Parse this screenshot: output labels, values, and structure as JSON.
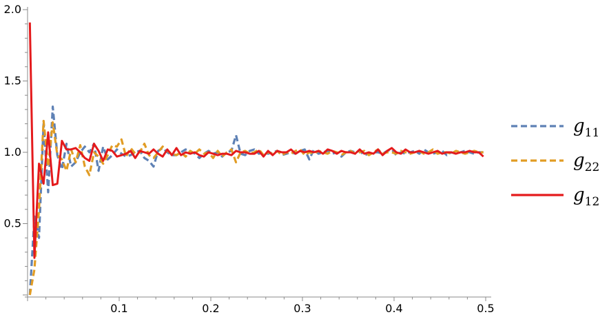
{
  "chart_data": {
    "type": "line",
    "title": "",
    "xlabel": "",
    "ylabel": "",
    "xlim": [
      0,
      0.5
    ],
    "ylim": [
      0,
      2.0
    ],
    "x_ticks": [
      0.1,
      0.2,
      0.3,
      0.4,
      0.5
    ],
    "x_tick_labels": [
      "0.1",
      "0.2",
      "0.3",
      "0.4",
      "0.5"
    ],
    "y_ticks": [
      0.5,
      1.0,
      1.5,
      2.0
    ],
    "y_tick_labels": [
      "0.5",
      "1.0",
      "1.5",
      "2.0"
    ],
    "grid": false,
    "legend_position": "right",
    "x_start": 0.0025,
    "x_step": 0.005,
    "series": [
      {
        "name": "g11",
        "legend_main": "g",
        "legend_sub": "11",
        "color": "#5E81B5",
        "dash": "dashed",
        "values": [
          0.0,
          0.55,
          0.4,
          1.2,
          0.72,
          1.32,
          0.98,
          0.88,
          1.06,
          0.9,
          0.93,
          1.0,
          1.04,
          1.0,
          1.06,
          0.87,
          1.04,
          0.95,
          0.98,
          1.02,
          0.99,
          0.97,
          0.98,
          1.0,
          1.01,
          0.96,
          0.94,
          0.9,
          1.01,
          1.03,
          1.0,
          0.98,
          0.98,
          1.0,
          1.02,
          1.01,
          0.99,
          0.96,
          0.99,
          1.01,
          0.99,
          1.0,
          0.97,
          1.0,
          1.01,
          1.12,
          0.99,
          0.98,
          1.01,
          1.02,
          0.99,
          1.0,
          0.99,
          1.0,
          1.01,
          0.98,
          0.99,
          1.0,
          0.99,
          1.01,
          1.02,
          0.95,
          1.02,
          0.99,
          1.0,
          1.01,
          0.99,
          1.0,
          0.97,
          1.0,
          1.01,
          1.0,
          1.01,
          0.98,
          0.99,
          1.0,
          1.0,
          0.99,
          1.01,
          1.02,
          0.98,
          1.0,
          0.99,
          1.0,
          1.01,
          0.99,
          1.02,
          1.0,
          0.99,
          1.0,
          1.01,
          0.98,
          1.0,
          0.99,
          1.0,
          1.01,
          1.0,
          0.99,
          1.0,
          1.0
        ]
      },
      {
        "name": "g22",
        "legend_main": "g",
        "legend_sub": "22",
        "color": "#E19C24",
        "dash": "dashed",
        "values": [
          0.0,
          0.18,
          0.6,
          1.22,
          0.9,
          1.21,
          0.98,
          0.95,
          0.87,
          1.02,
          0.93,
          1.05,
          0.9,
          0.84,
          1.0,
          0.97,
          0.92,
          0.98,
          1.05,
          1.04,
          1.09,
          0.97,
          1.03,
          0.99,
          1.0,
          1.06,
          0.98,
          0.96,
          1.0,
          1.04,
          1.01,
          0.99,
          0.98,
          1.0,
          0.97,
          1.01,
          0.99,
          1.02,
          0.99,
          1.0,
          0.96,
          1.01,
          0.97,
          1.0,
          1.02,
          0.93,
          1.0,
          1.01,
          0.99,
          1.0,
          1.02,
          0.98,
          1.0,
          0.99,
          1.01,
          0.98,
          1.0,
          0.99,
          1.01,
          1.02,
          0.98,
          1.0,
          0.99,
          1.01,
          1.0,
          0.99,
          1.01,
          1.0,
          0.98,
          1.0,
          1.01,
          0.99,
          1.0,
          1.01,
          0.98,
          1.0,
          1.02,
          0.99,
          1.0,
          1.0,
          0.99,
          1.01,
          1.0,
          0.99,
          1.0,
          1.01,
          0.99,
          1.0,
          1.02,
          0.99,
          1.0,
          1.0,
          0.99,
          1.01,
          1.0,
          0.99,
          1.0,
          1.01,
          1.0,
          1.0
        ]
      },
      {
        "name": "g12",
        "legend_main": "g",
        "legend_sub": "12",
        "color": "#E41A1C",
        "dash": "solid",
        "values": [
          1.91,
          0.26,
          0.92,
          0.78,
          1.14,
          0.77,
          0.78,
          1.08,
          1.02,
          1.02,
          1.03,
          1.0,
          0.96,
          0.94,
          1.06,
          1.01,
          0.94,
          1.02,
          1.01,
          0.97,
          0.98,
          0.99,
          1.01,
          0.96,
          1.01,
          1.0,
          0.99,
          1.02,
          0.99,
          0.97,
          1.02,
          0.98,
          1.03,
          0.98,
          1.0,
          0.99,
          1.0,
          0.98,
          0.97,
          1.0,
          0.99,
          0.98,
          0.99,
          0.99,
          0.98,
          1.01,
          1.0,
          1.0,
          0.99,
          0.99,
          1.01,
          0.97,
          1.01,
          0.98,
          1.01,
          1.0,
          1.0,
          1.02,
          0.99,
          1.01,
          1.0,
          1.01,
          1.0,
          1.01,
          0.99,
          1.02,
          1.01,
          0.99,
          1.01,
          1.0,
          1.0,
          0.99,
          1.02,
          0.99,
          1.0,
          0.99,
          1.02,
          0.98,
          1.01,
          1.03,
          1.0,
          0.99,
          1.02,
          1.0,
          1.0,
          1.01,
          1.0,
          0.99,
          1.0,
          1.01,
          0.99,
          1.0,
          1.0,
          0.99,
          1.0,
          1.0,
          1.01,
          1.0,
          1.0,
          0.97
        ]
      }
    ]
  }
}
